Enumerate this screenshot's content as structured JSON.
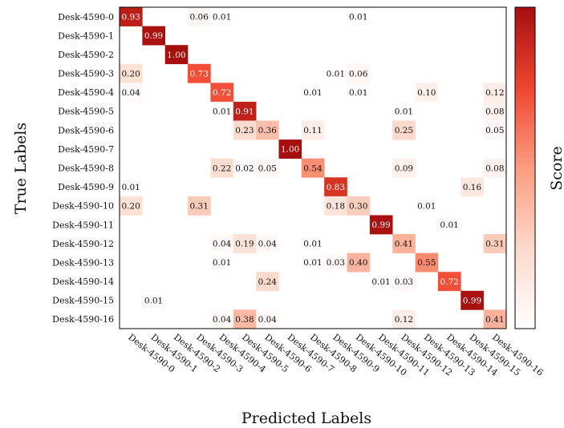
{
  "chart_data": {
    "type": "heatmap",
    "title": "",
    "xlabel": "Predicted Labels",
    "ylabel": "True Labels",
    "colorbar_label": "Score",
    "value_range": [
      0,
      1
    ],
    "colormap": {
      "low": "#ffffff",
      "high": "#c0140a"
    },
    "row_labels": [
      "Desk-4590-0",
      "Desk-4590-1",
      "Desk-4590-2",
      "Desk-4590-3",
      "Desk-4590-4",
      "Desk-4590-5",
      "Desk-4590-6",
      "Desk-4590-7",
      "Desk-4590-8",
      "Desk-4590-9",
      "Desk-4590-10",
      "Desk-4590-11",
      "Desk-4590-12",
      "Desk-4590-13",
      "Desk-4590-14",
      "Desk-4590-15",
      "Desk-4590-16"
    ],
    "col_labels": [
      "Desk-4590-0",
      "Desk-4590-1",
      "Desk-4590-2",
      "Desk-4590-3",
      "Desk-4590-4",
      "Desk-4590-5",
      "Desk-4590-6",
      "Desk-4590-7",
      "Desk-4590-8",
      "Desk-4590-9",
      "Desk-4590-10",
      "Desk-4590-11",
      "Desk-4590-12",
      "Desk-4590-13",
      "Desk-4590-14",
      "Desk-4590-15",
      "Desk-4590-16"
    ],
    "values": [
      [
        0.93,
        0,
        0,
        0.06,
        0.01,
        0,
        0,
        0,
        0,
        0,
        0.01,
        0,
        0,
        0,
        0,
        0,
        0
      ],
      [
        0,
        0.99,
        0,
        0,
        0,
        0,
        0,
        0,
        0,
        0,
        0,
        0,
        0,
        0,
        0,
        0,
        0
      ],
      [
        0,
        0,
        1.0,
        0,
        0,
        0,
        0,
        0,
        0,
        0,
        0,
        0,
        0,
        0,
        0,
        0,
        0
      ],
      [
        0.2,
        0,
        0,
        0.73,
        0,
        0,
        0,
        0,
        0,
        0.01,
        0.06,
        0,
        0,
        0,
        0,
        0,
        0
      ],
      [
        0.04,
        0,
        0,
        0,
        0.72,
        0,
        0,
        0,
        0.01,
        0,
        0.01,
        0,
        0,
        0.1,
        0,
        0,
        0.12
      ],
      [
        0,
        0,
        0,
        0,
        0.01,
        0.91,
        0,
        0,
        0,
        0,
        0,
        0,
        0.01,
        0,
        0,
        0,
        0.08
      ],
      [
        0,
        0,
        0,
        0,
        0,
        0.23,
        0.36,
        0,
        0.11,
        0,
        0,
        0,
        0.25,
        0,
        0,
        0,
        0.05
      ],
      [
        0,
        0,
        0,
        0,
        0,
        0,
        0,
        1.0,
        0,
        0,
        0,
        0,
        0,
        0,
        0,
        0,
        0
      ],
      [
        0,
        0,
        0,
        0,
        0.22,
        0.02,
        0.05,
        0,
        0.54,
        0,
        0,
        0,
        0.09,
        0,
        0,
        0,
        0.08
      ],
      [
        0.01,
        0,
        0,
        0,
        0,
        0,
        0,
        0,
        0,
        0.83,
        0,
        0,
        0,
        0,
        0,
        0.16,
        0
      ],
      [
        0.2,
        0,
        0,
        0.31,
        0,
        0,
        0,
        0,
        0,
        0.18,
        0.3,
        0,
        0,
        0.01,
        0,
        0,
        0
      ],
      [
        0,
        0,
        0,
        0,
        0,
        0,
        0,
        0,
        0,
        0,
        0,
        0.99,
        0,
        0,
        0.01,
        0,
        0
      ],
      [
        0,
        0,
        0,
        0,
        0.04,
        0.19,
        0.04,
        0,
        0.01,
        0,
        0,
        0,
        0.41,
        0,
        0,
        0,
        0.31
      ],
      [
        0,
        0,
        0,
        0,
        0.01,
        0,
        0,
        0,
        0.01,
        0.03,
        0.4,
        0,
        0,
        0.55,
        0,
        0,
        0
      ],
      [
        0,
        0,
        0,
        0,
        0,
        0,
        0.24,
        0,
        0,
        0,
        0,
        0.01,
        0.03,
        0,
        0.72,
        0,
        0
      ],
      [
        0,
        0.01,
        0,
        0,
        0,
        0,
        0,
        0,
        0,
        0,
        0,
        0,
        0,
        0,
        0,
        0.99,
        0
      ],
      [
        0,
        0,
        0,
        0,
        0.04,
        0.38,
        0.04,
        0,
        0,
        0,
        0,
        0,
        0.12,
        0,
        0,
        0,
        0.41
      ]
    ],
    "grid": false,
    "annotations": "cell values shown with two decimals; zero cells blank"
  }
}
